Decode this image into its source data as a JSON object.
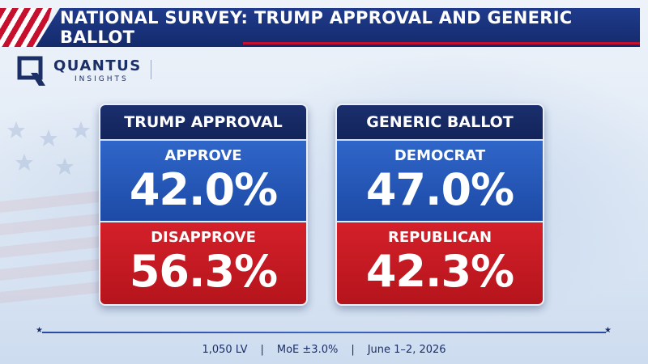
{
  "header": {
    "title": "NATIONAL SURVEY: TRUMP APPROVAL AND GENERIC BALLOT"
  },
  "logo": {
    "name": "QUANTUS",
    "subtitle": "INSIGHTS"
  },
  "cards": {
    "approval": {
      "title": "TRUMP APPROVAL",
      "top_label": "APPROVE",
      "top_value": "42.0%",
      "bottom_label": "DISAPPROVE",
      "bottom_value": "56.3%"
    },
    "ballot": {
      "title": "GENERIC BALLOT",
      "top_label": "DEMOCRAT",
      "top_value": "47.0%",
      "bottom_label": "REPUBLICAN",
      "bottom_value": "42.3%"
    }
  },
  "footer": {
    "sample": "1,050 LV",
    "moe": "MoE ±3.0%",
    "dates": "June 1–2, 2026",
    "separator": "|"
  },
  "colors": {
    "navy": "#142a6b",
    "blue": "#2f66c9",
    "red": "#c7102e"
  }
}
